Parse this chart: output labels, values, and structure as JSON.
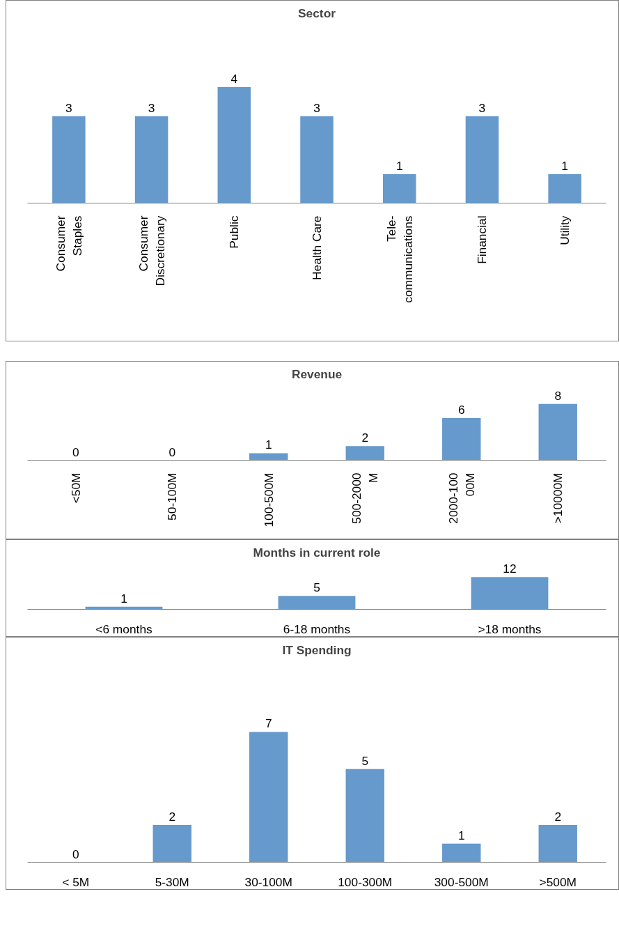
{
  "chart_data": [
    {
      "type": "bar",
      "title": "Sector",
      "categories": [
        "Consumer Staples",
        "Consumer Discretionary",
        "Public",
        "Health Care",
        "Tele-communications",
        "Financial",
        "Utility"
      ],
      "values": [
        3,
        3,
        4,
        3,
        1,
        3,
        1
      ],
      "color": "#6699cc",
      "data_labels": true,
      "tick_labels": "x",
      "grid": false
    },
    {
      "type": "bar",
      "title": "Revenue",
      "categories": [
        "<50M",
        "50-100M",
        "100-500M",
        "500-2000M",
        "2000-10000M",
        ">10000M"
      ],
      "values": [
        0,
        0,
        1,
        2,
        6,
        8
      ],
      "color": "#6699cc",
      "data_labels": true,
      "tick_labels": "x",
      "grid": false
    },
    {
      "type": "bar",
      "title": "Months in current role",
      "categories": [
        "<6 months",
        "6-18 months",
        ">18 months"
      ],
      "values": [
        1,
        5,
        12
      ],
      "color": "#6699cc",
      "data_labels": true,
      "tick_labels": "x",
      "grid": false
    },
    {
      "type": "bar",
      "title": "IT Spending",
      "categories": [
        "< 5M",
        "5-30M",
        "30-100M",
        "100-300M",
        "300-500M",
        ">500M"
      ],
      "values": [
        0,
        2,
        7,
        5,
        1,
        2
      ],
      "color": "#6699cc",
      "data_labels": true,
      "tick_labels": "x",
      "grid": false
    }
  ]
}
